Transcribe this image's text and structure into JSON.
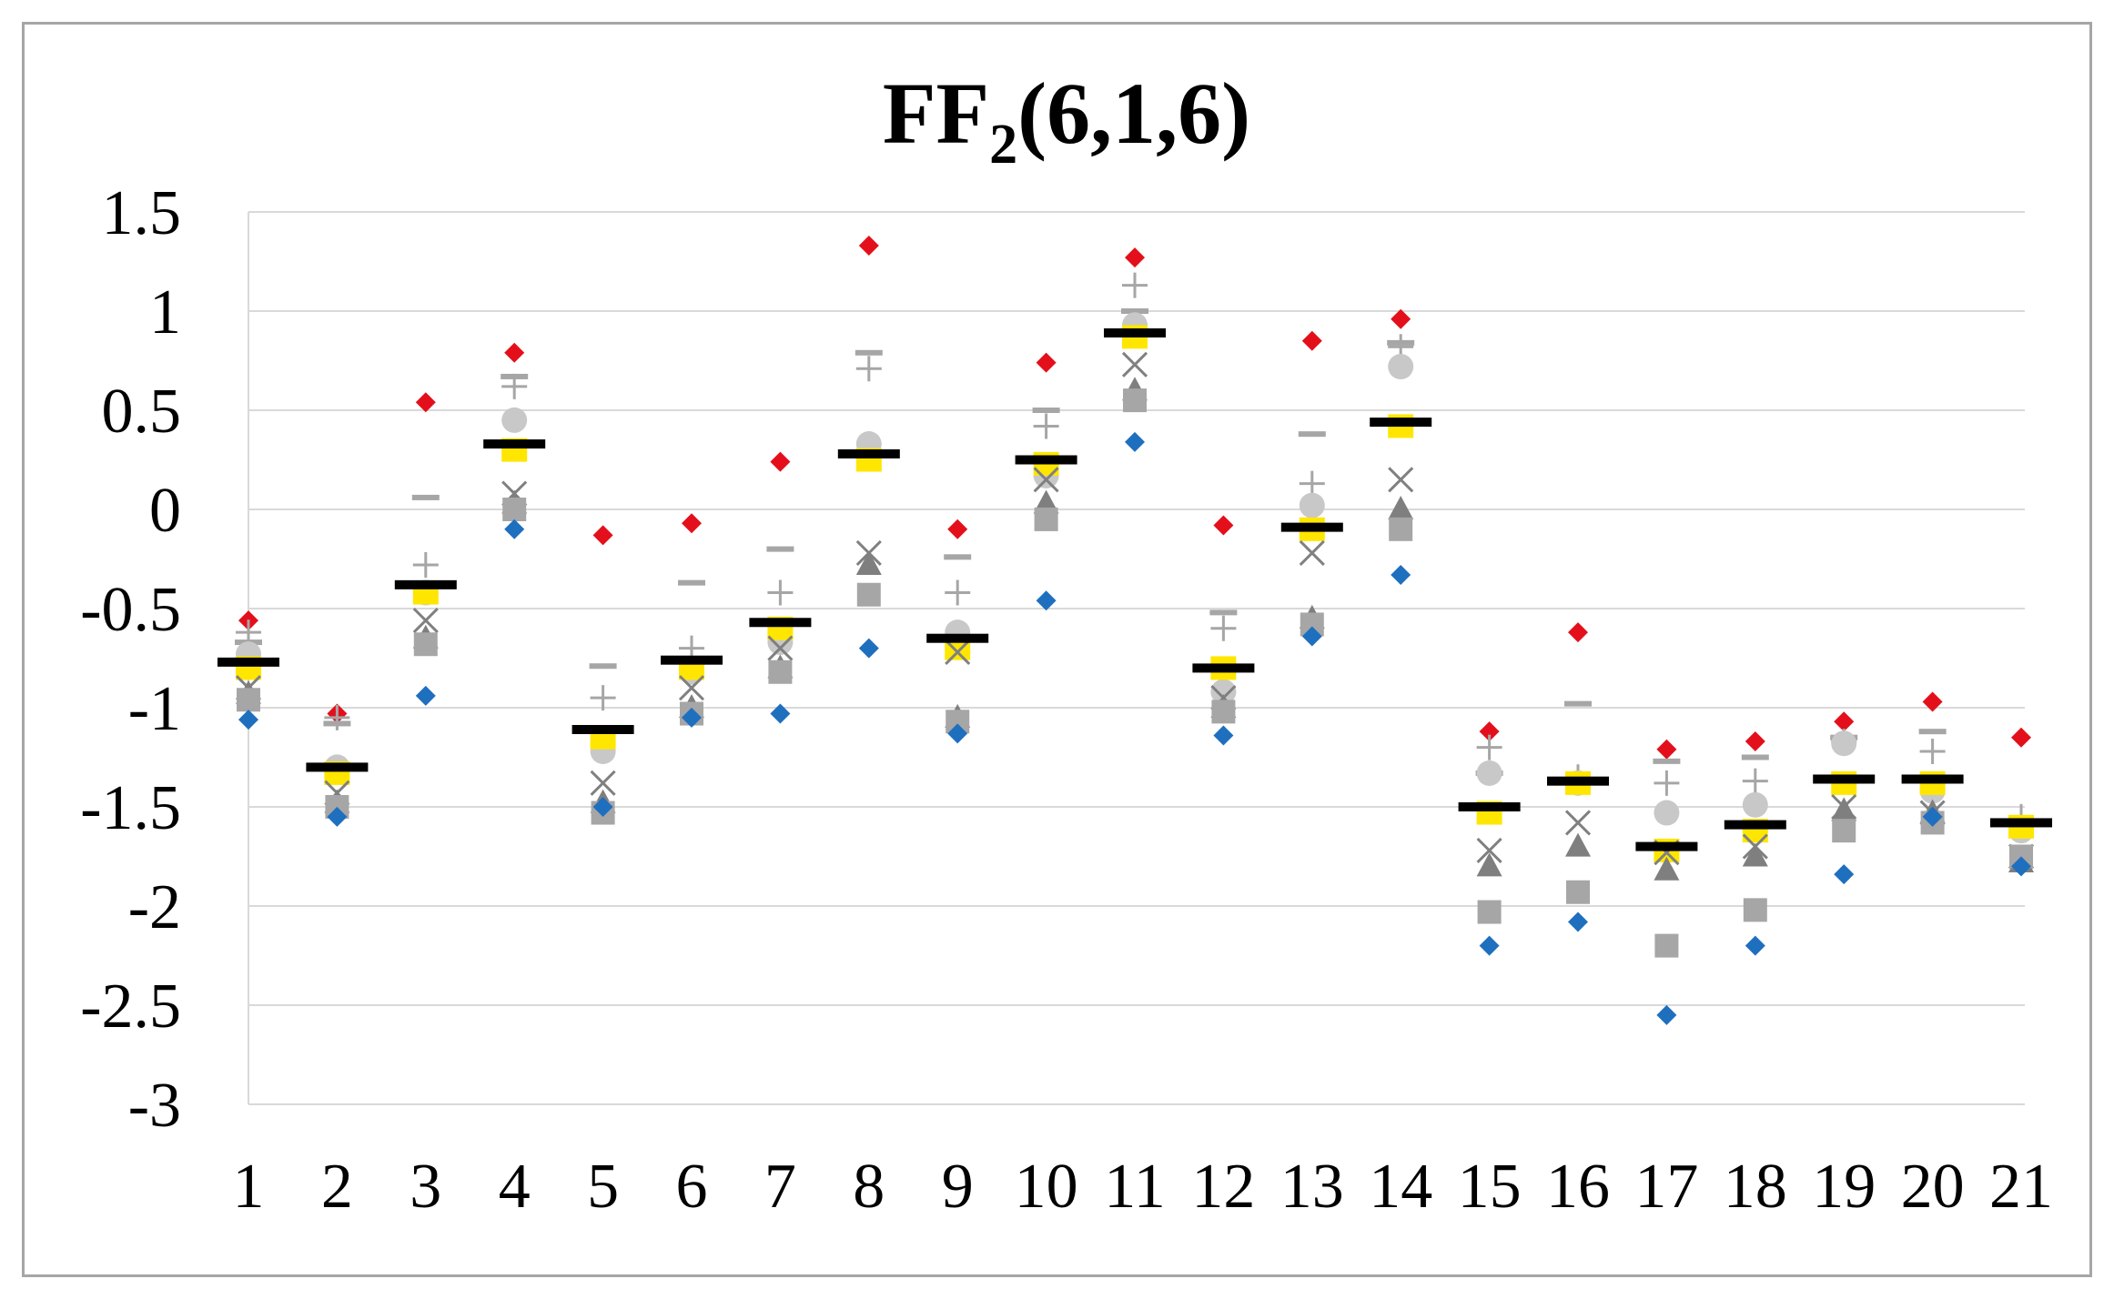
{
  "chart_data": {
    "type": "scatter",
    "title": "FF",
    "title_subscript": "2",
    "title_suffix": "(6,1,6)",
    "xlabel": "",
    "ylabel": "",
    "categories": [
      "1",
      "2",
      "3",
      "4",
      "5",
      "6",
      "7",
      "8",
      "9",
      "10",
      "11",
      "12",
      "13",
      "14",
      "15",
      "16",
      "17",
      "18",
      "19",
      "20",
      "21"
    ],
    "ylim": [
      -3,
      1.5
    ],
    "yticks": [
      "1.5",
      "1",
      "0.5",
      "0",
      "-0.5",
      "-1",
      "-1.5",
      "-2",
      "-2.5",
      "-3"
    ],
    "ytick_values": [
      1.5,
      1,
      0.5,
      0,
      -0.5,
      -1,
      -1.5,
      -2,
      -2.5,
      -3
    ],
    "grid": true,
    "legend": "none",
    "series": [
      {
        "marker": "diamond",
        "color": "#e3101b",
        "values": [
          -0.56,
          -1.03,
          0.54,
          0.79,
          -0.13,
          -0.07,
          0.24,
          1.33,
          -0.1,
          0.74,
          1.27,
          -0.08,
          0.85,
          0.96,
          -1.12,
          -0.62,
          -1.21,
          -1.17,
          -1.07,
          -0.97,
          -1.15
        ]
      },
      {
        "marker": "plus",
        "color": "#a6a6a6",
        "values": [
          -0.62,
          -1.05,
          -0.28,
          0.62,
          -0.95,
          -0.7,
          -0.42,
          0.71,
          -0.42,
          0.42,
          1.13,
          -0.6,
          0.13,
          0.82,
          -1.2,
          -1.35,
          -1.38,
          -1.37,
          -1.17,
          -1.22,
          -1.55
        ]
      },
      {
        "marker": "dash",
        "color": "#a6a6a6",
        "values": [
          -0.67,
          -1.08,
          0.06,
          0.67,
          -0.79,
          -0.37,
          -0.2,
          0.79,
          -0.24,
          0.5,
          1.0,
          -0.52,
          0.38,
          0.84,
          -1.33,
          -0.98,
          -1.27,
          -1.25,
          -1.15,
          -1.12,
          -1.58
        ]
      },
      {
        "marker": "circle",
        "color": "#c8c8c8",
        "values": [
          -0.73,
          -1.3,
          -0.42,
          0.45,
          -1.22,
          -0.82,
          -0.67,
          0.33,
          -0.62,
          0.17,
          0.93,
          -0.92,
          0.02,
          0.72,
          -1.33,
          -1.38,
          -1.53,
          -1.49,
          -1.18,
          -1.42,
          -1.62
        ]
      },
      {
        "marker": "yellow-bar",
        "color": "#ffe600",
        "values": [
          -0.8,
          -1.33,
          -0.42,
          0.3,
          -1.15,
          -0.8,
          -0.6,
          0.25,
          -0.7,
          0.23,
          0.87,
          -0.8,
          -0.1,
          0.42,
          -1.53,
          -1.38,
          -1.72,
          -1.62,
          -1.38,
          -1.38,
          -1.6
        ]
      },
      {
        "marker": "x",
        "color": "#808080",
        "values": [
          -0.9,
          -1.43,
          -0.56,
          0.08,
          -1.38,
          -0.9,
          -0.7,
          -0.22,
          -0.72,
          0.15,
          0.73,
          -0.95,
          -0.22,
          0.15,
          -1.72,
          -1.58,
          -1.73,
          -1.7,
          -1.5,
          -1.53,
          -1.75
        ]
      },
      {
        "marker": "triangle",
        "color": "#7f7f7f",
        "values": [
          -0.93,
          -1.48,
          -0.65,
          0.03,
          -1.48,
          -1.0,
          -0.8,
          -0.28,
          -1.05,
          0.03,
          0.6,
          -1.0,
          -0.55,
          0.0,
          -1.8,
          -1.7,
          -1.82,
          -1.75,
          -1.52,
          -1.53,
          -1.78
        ]
      },
      {
        "marker": "square",
        "color": "#a6a6a6",
        "values": [
          -0.96,
          -1.5,
          -0.68,
          0.0,
          -1.53,
          -1.03,
          -0.82,
          -0.43,
          -1.07,
          -0.05,
          0.55,
          -1.02,
          -0.58,
          -0.1,
          -2.03,
          -1.93,
          -2.2,
          -2.02,
          -1.62,
          -1.58,
          -1.75
        ]
      },
      {
        "marker": "diamond",
        "color": "#1f6fbf",
        "values": [
          -1.06,
          -1.55,
          -0.94,
          -0.1,
          -1.5,
          -1.05,
          -1.03,
          -0.7,
          -1.13,
          -0.46,
          0.34,
          -1.14,
          -0.64,
          -0.33,
          -2.2,
          -2.08,
          -2.55,
          -2.2,
          -1.84,
          -1.55,
          -1.8
        ]
      },
      {
        "marker": "black-bar",
        "color": "#000000",
        "values": [
          -0.77,
          -1.3,
          -0.38,
          0.33,
          -1.11,
          -0.76,
          -0.57,
          0.28,
          -0.65,
          0.25,
          0.89,
          -0.8,
          -0.09,
          0.44,
          -1.5,
          -1.37,
          -1.7,
          -1.59,
          -1.36,
          -1.36,
          -1.58
        ]
      }
    ]
  }
}
